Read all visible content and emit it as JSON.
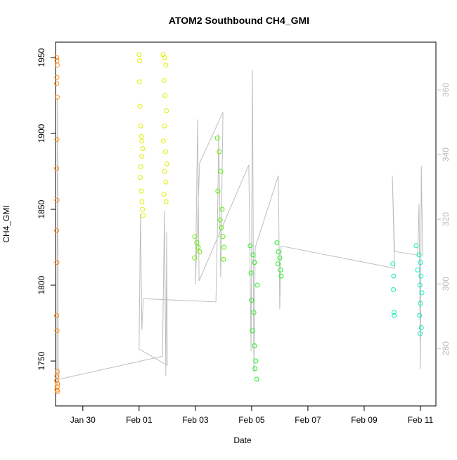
{
  "chart_data": {
    "type": "scatter",
    "title": "ATOM2 Southbound CH4_GMI",
    "x_label": "Date",
    "y_label": "CH4_GMI",
    "xlim": [
      29.03,
      42.55
    ],
    "ylim": [
      1720.4,
      1960.2
    ],
    "y2lim": [
      262.2,
      374.8
    ],
    "xticks": [
      {
        "value": 30,
        "label": "Jan 30"
      },
      {
        "value": 32,
        "label": "Feb 01"
      },
      {
        "value": 34,
        "label": "Feb 03"
      },
      {
        "value": 36,
        "label": "Feb 05"
      },
      {
        "value": 38,
        "label": "Feb 07"
      },
      {
        "value": 40,
        "label": "Feb 09"
      },
      {
        "value": 42,
        "label": "Feb 11"
      }
    ],
    "yticks": [
      1750,
      1800,
      1850,
      1900,
      1950
    ],
    "y2ticks": [
      280,
      300,
      320,
      340,
      360
    ],
    "series": [
      {
        "color": "#ff8c1a",
        "x": [
          29.07,
          29.08,
          29.09,
          29.08,
          29.07,
          29.09,
          29.08,
          29.07,
          29.08,
          29.07,
          29.08,
          29.07,
          29.08,
          29.09,
          29.08,
          29.07,
          29.1,
          29.09,
          29.08,
          29.1
        ],
        "values": [
          1950,
          1948,
          1945,
          1937,
          1933,
          1924,
          1896,
          1877,
          1856,
          1836,
          1815,
          1780,
          1770,
          1743,
          1740,
          1737,
          1735,
          1733,
          1731,
          1730
        ]
      },
      {
        "color": "#e0f000",
        "x": [
          32.0,
          32.02,
          32.01,
          32.03,
          32.05,
          32.08,
          32.1,
          32.12,
          32.1,
          32.06,
          32.04,
          32.08,
          32.1,
          32.12,
          32.14
        ],
        "values": [
          1952,
          1948,
          1934,
          1918,
          1905,
          1898,
          1895,
          1890,
          1885,
          1878,
          1871,
          1862,
          1855,
          1850,
          1846
        ]
      },
      {
        "color": "#e0f000",
        "x": [
          32.85,
          32.9,
          32.95,
          32.88,
          32.92,
          32.97,
          32.9,
          32.86,
          32.94,
          32.98,
          32.9,
          32.95,
          32.88,
          32.96
        ],
        "values": [
          1952,
          1950,
          1945,
          1935,
          1925,
          1915,
          1905,
          1895,
          1888,
          1880,
          1875,
          1868,
          1860,
          1855
        ]
      },
      {
        "color": "#66ee00",
        "x": [
          33.98,
          34.05,
          34.1,
          34.15,
          33.97
        ],
        "values": [
          1832,
          1828,
          1825,
          1822,
          1818
        ]
      },
      {
        "color": "#55ee00",
        "x": [
          34.78,
          34.85,
          34.9,
          34.8,
          34.95,
          34.88,
          34.92,
          34.98,
          35.02,
          35.0
        ],
        "values": [
          1897,
          1888,
          1875,
          1862,
          1850,
          1843,
          1838,
          1832,
          1825,
          1817
        ]
      },
      {
        "color": "#22ee22",
        "x": [
          35.95,
          36.05,
          36.1,
          35.98,
          36.2,
          36.0,
          36.08,
          36.03,
          36.1,
          36.15,
          36.12,
          36.18
        ],
        "values": [
          1826,
          1820,
          1815,
          1808,
          1800,
          1790,
          1782,
          1770,
          1760,
          1750,
          1745,
          1738
        ]
      },
      {
        "color": "#22ee22",
        "x": [
          36.9,
          36.95,
          37.0,
          36.93,
          37.03,
          37.05
        ],
        "values": [
          1828,
          1822,
          1818,
          1814,
          1810,
          1806
        ]
      },
      {
        "color": "#11eebb",
        "x": [
          41.02,
          41.05,
          41.04,
          41.06,
          41.07
        ],
        "values": [
          1814,
          1806,
          1797,
          1782,
          1780
        ]
      },
      {
        "color": "#11eebb",
        "x": [
          41.85,
          41.95,
          42.0,
          41.9,
          42.02,
          41.98,
          42.05,
          42.0,
          41.97,
          42.03,
          41.99
        ],
        "values": [
          1826,
          1820,
          1815,
          1810,
          1806,
          1800,
          1795,
          1788,
          1780,
          1772,
          1768
        ]
      }
    ],
    "line": {
      "color": "#bebebe",
      "axis": "y2",
      "x": [
        29.08,
        29.1,
        29.13,
        32.83,
        32.9,
        32.95,
        32.98,
        33.0,
        32.0,
        32.05,
        32.1,
        32.15,
        34.73,
        34.78,
        34.83,
        34.9,
        34.98,
        34.15,
        34.0,
        34.08,
        34.13,
        35.9,
        35.98,
        36.03,
        36.08,
        36.13,
        36.95,
        37.0,
        37.05,
        41.08,
        41.0,
        41.08,
        41.9,
        41.95,
        42.0,
        42.03,
        42.08
      ],
      "values": [
        268.7,
        357.4,
        270.4,
        277.6,
        322.6,
        271.5,
        316.1,
        274.8,
        279.8,
        321.5,
        285.7,
        295.4,
        294.4,
        316.1,
        346.5,
        302,
        353.1,
        337.4,
        299.8,
        350.9,
        300.9,
        336.8,
        279.1,
        366.1,
        272.6,
        311.3,
        333.5,
        292.2,
        311.7,
        304.8,
        333.5,
        310.0,
        308.9,
        324.8,
        273.7,
        336.5,
        308.5
      ]
    }
  }
}
